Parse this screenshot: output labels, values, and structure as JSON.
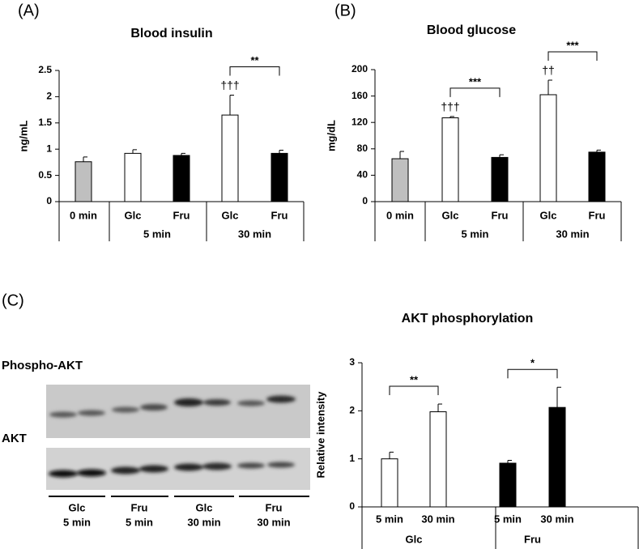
{
  "panels": [
    "(A)",
    "(B)",
    "(C)"
  ],
  "blot": {
    "labels": [
      "Phospho-AKT",
      "AKT"
    ],
    "lanes": [
      [
        "Glc",
        "5 min"
      ],
      [
        "Fru",
        "5 min"
      ],
      [
        "Glc",
        "30 min"
      ],
      [
        "Fru",
        "30 min"
      ]
    ]
  },
  "chart_data": [
    {
      "type": "bar",
      "title": "Blood insulin",
      "y_label": "ng/mL",
      "categories": [
        "0 min",
        "Glc",
        "Fru",
        "Glc",
        "Fru"
      ],
      "groups": [
        null,
        "5 min",
        "5 min",
        "30 min",
        "30 min"
      ],
      "values": [
        0.76,
        0.92,
        0.88,
        1.65,
        0.92
      ],
      "errors": [
        0.09,
        0.07,
        0.04,
        0.38,
        0.06
      ],
      "colors": [
        "#bfbfbf",
        "#ffffff",
        "#000000",
        "#ffffff",
        "#000000"
      ],
      "ylim": [
        0,
        2.5
      ],
      "yticks": [
        0,
        0.5,
        1,
        1.5,
        2,
        2.5
      ],
      "annotations": [
        {
          "text": "†††",
          "category": 3
        }
      ],
      "brackets": [
        {
          "text": "**",
          "from": 3,
          "to": 4
        }
      ]
    },
    {
      "type": "bar",
      "title": "Blood glucose",
      "y_label": "mg/dL",
      "categories": [
        "0 min",
        "Glc",
        "Fru",
        "Glc",
        "Fru"
      ],
      "groups": [
        null,
        "5 min",
        "5 min",
        "30 min",
        "30 min"
      ],
      "values": [
        65,
        127,
        67,
        162,
        75
      ],
      "errors": [
        11,
        2,
        4,
        22,
        3
      ],
      "colors": [
        "#bfbfbf",
        "#ffffff",
        "#000000",
        "#ffffff",
        "#000000"
      ],
      "ylim": [
        0,
        200
      ],
      "yticks": [
        0,
        40,
        80,
        120,
        160,
        200
      ],
      "annotations": [
        {
          "text": "†††",
          "category": 1
        },
        {
          "text": "††",
          "category": 3
        }
      ],
      "brackets": [
        {
          "text": "***",
          "from": 1,
          "to": 2
        },
        {
          "text": "***",
          "from": 3,
          "to": 4
        }
      ]
    },
    {
      "type": "bar",
      "title": "AKT phosphorylation",
      "y_label": "Relative intensity",
      "categories": [
        "5 min",
        "30 min",
        "5 min",
        "30 min"
      ],
      "groups": [
        "Glc",
        "Glc",
        "Fru",
        "Fru"
      ],
      "values": [
        1.0,
        1.98,
        0.91,
        2.07
      ],
      "errors": [
        0.14,
        0.16,
        0.06,
        0.42
      ],
      "colors": [
        "#ffffff",
        "#ffffff",
        "#000000",
        "#000000"
      ],
      "ylim": [
        0,
        3
      ],
      "yticks": [
        0,
        1,
        2,
        3
      ],
      "annotations": [],
      "brackets": [
        {
          "text": "**",
          "from": 0,
          "to": 1
        },
        {
          "text": "*",
          "from": 2,
          "to": 3
        }
      ]
    }
  ]
}
